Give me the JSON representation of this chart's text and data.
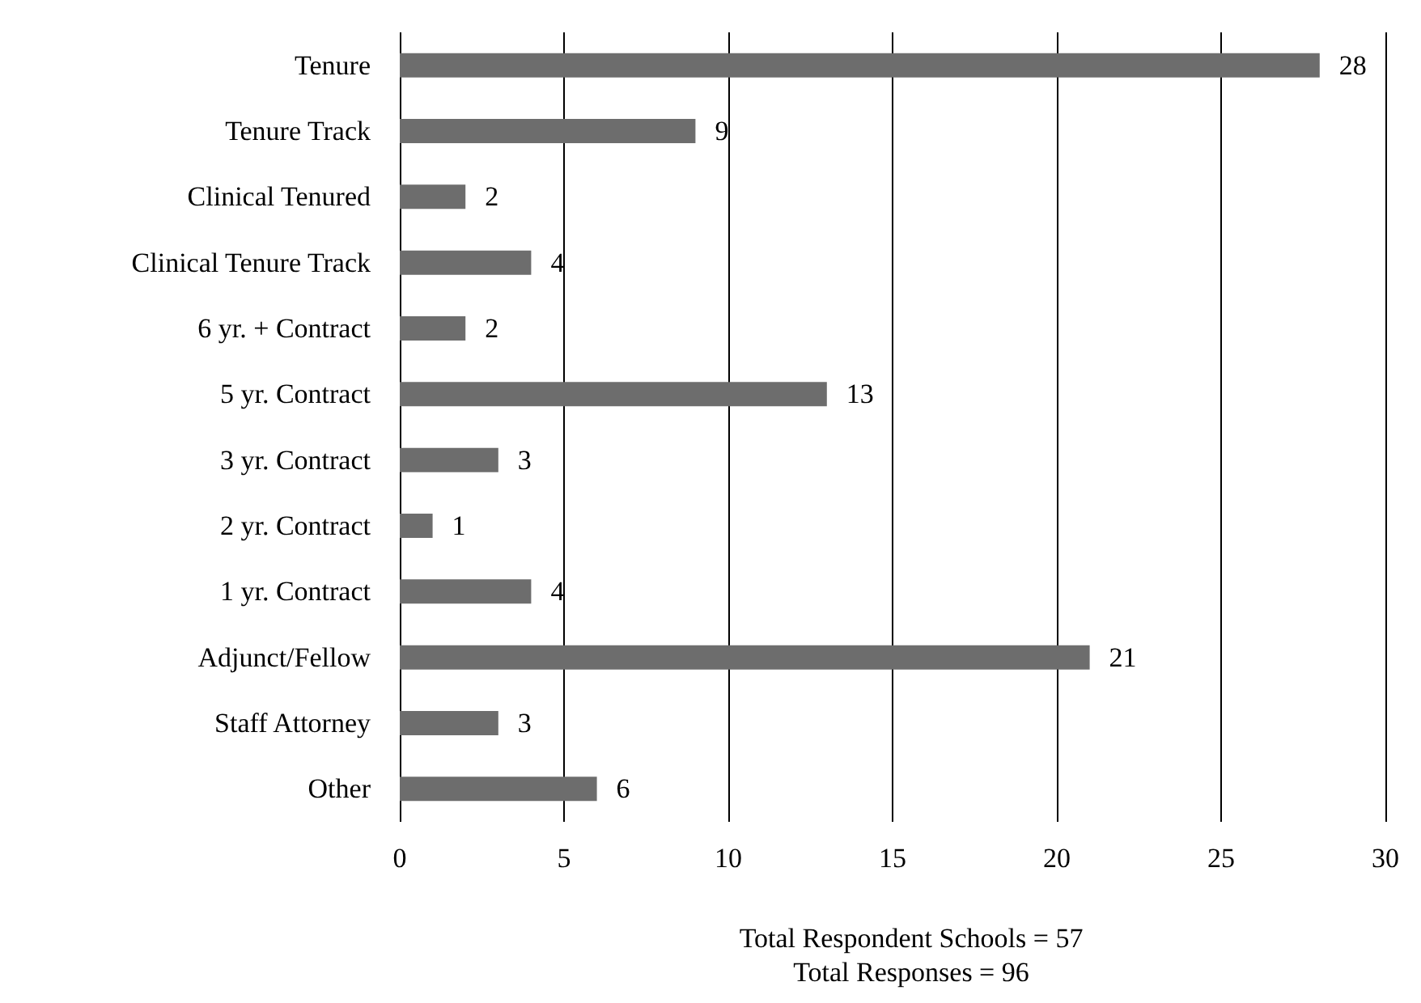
{
  "chart_data": {
    "type": "bar",
    "orientation": "horizontal",
    "categories": [
      "Tenure",
      "Tenure Track",
      "Clinical Tenured",
      "Clinical Tenure Track",
      "6 yr. + Contract",
      "5 yr. Contract",
      "3 yr. Contract",
      "2 yr. Contract",
      "1 yr. Contract",
      "Adjunct/Fellow",
      "Staff Attorney",
      "Other"
    ],
    "values": [
      28,
      9,
      2,
      4,
      2,
      13,
      3,
      1,
      4,
      21,
      3,
      6
    ],
    "color": "#6d6d6d",
    "xlim": [
      0,
      30
    ],
    "xticks": [
      0,
      5,
      10,
      15,
      20,
      25,
      30
    ],
    "grid": "x",
    "data_labels": true,
    "annotations": [
      "Total Respondent Schools = 57",
      "Total Responses = 96"
    ]
  }
}
